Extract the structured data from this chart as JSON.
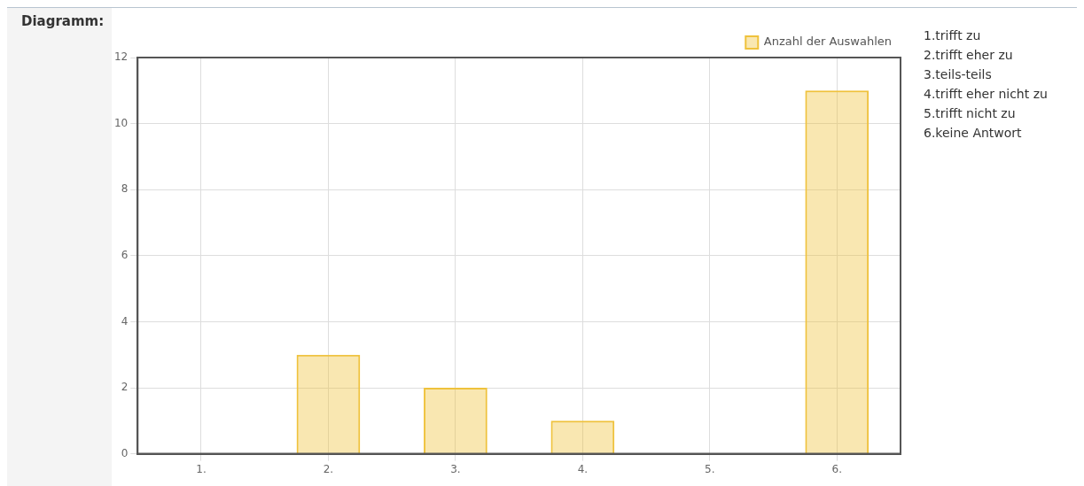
{
  "chart_data": {
    "type": "bar",
    "title": "Diagramm:",
    "categories": [
      "1.",
      "2.",
      "3.",
      "4.",
      "5.",
      "6."
    ],
    "series": [
      {
        "name": "Anzahl der Auswahlen",
        "color": "#efc23c",
        "values": [
          0,
          3,
          2,
          1,
          0,
          11
        ]
      }
    ],
    "ylim": [
      0,
      12
    ],
    "yticks": [
      0,
      2,
      4,
      6,
      8,
      10,
      12
    ],
    "grid": true,
    "legend": "top right",
    "annotations": [
      "1.trifft zu",
      "2.trifft eher zu",
      "3.teils-teils",
      "4.trifft eher nicht zu",
      "5.trifft nicht zu",
      "6.keine Antwort"
    ]
  }
}
